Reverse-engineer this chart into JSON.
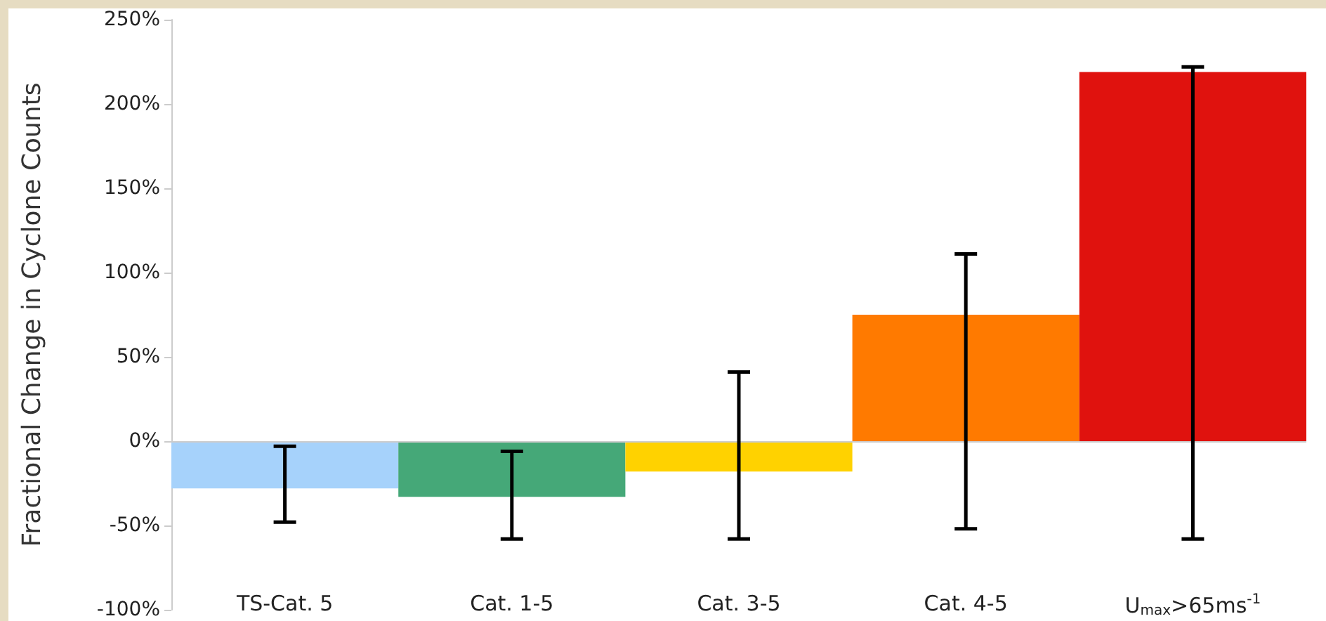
{
  "chart_data": {
    "type": "bar",
    "ylabel": "Fractional Change in Cyclone Counts",
    "categories": [
      "TS-Cat. 5",
      "Cat. 1-5",
      "Cat. 3-5",
      "Cat. 4-5",
      "U$_{max}$>65ms$^{-1}$"
    ],
    "values": [
      -28,
      -33,
      -18,
      75,
      219
    ],
    "errors": [
      [
        -48,
        -3
      ],
      [
        -58,
        -6
      ],
      [
        -58,
        41
      ],
      [
        -52,
        111
      ],
      [
        -58,
        222
      ]
    ],
    "colors": [
      "#a6d2fb",
      "#45a878",
      "#ffd200",
      "#ff7a00",
      "#e0120e"
    ],
    "ylim": [
      -100,
      250
    ],
    "yticks": [
      {
        "value": -100,
        "label": "-100%"
      },
      {
        "value": -50,
        "label": "-50%"
      },
      {
        "value": 0,
        "label": "0%"
      },
      {
        "value": 50,
        "label": "50%"
      },
      {
        "value": 100,
        "label": "100%"
      },
      {
        "value": 150,
        "label": "150%"
      },
      {
        "value": 200,
        "label": "200%"
      },
      {
        "value": 250,
        "label": "250%"
      }
    ],
    "grid": false
  }
}
